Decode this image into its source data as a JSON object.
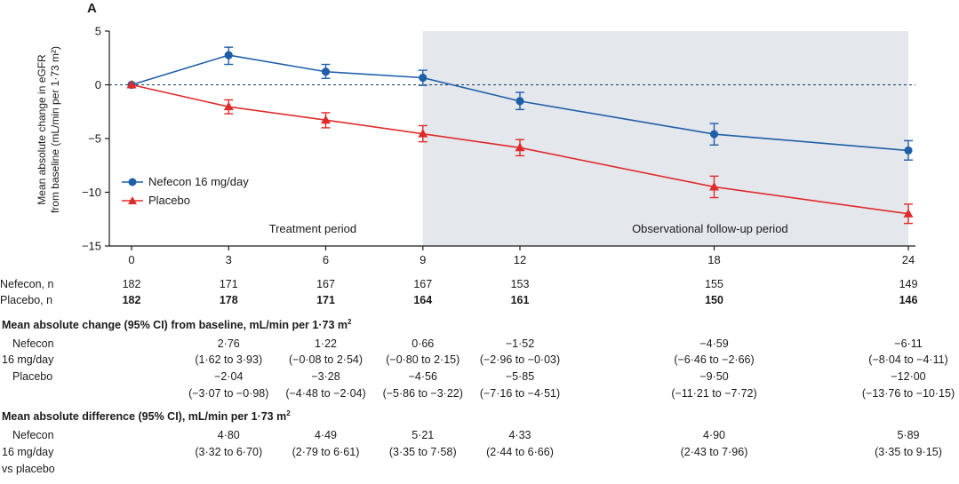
{
  "panel_label": "A",
  "chart_data": {
    "type": "line",
    "title": "",
    "xlabel": "",
    "ylabel_line1": "Mean absolute change in eGFR",
    "ylabel_line2": "from baseline (mL/min per 1·73 m²)",
    "x": [
      0,
      3,
      6,
      9,
      12,
      18,
      24
    ],
    "x_tick_labels": [
      "0",
      "3",
      "6",
      "9",
      "12",
      "18",
      "24"
    ],
    "y_ticks": [
      5,
      0,
      -5,
      -10,
      -15
    ],
    "y_tick_labels": [
      "5",
      "0",
      "−5",
      "−10",
      "−15"
    ],
    "ylim": [
      -15,
      5
    ],
    "xlim": [
      0,
      24
    ],
    "grid": false,
    "reference_line_y": 0,
    "shaded_region_x": [
      9,
      24
    ],
    "legend_position": "left",
    "series": [
      {
        "name": "Nefecon 16 mg/day",
        "color": "#1f5fa8",
        "marker": "circle",
        "values": [
          0,
          2.76,
          1.22,
          0.66,
          -1.52,
          -4.59,
          -6.11
        ],
        "ci_low": [
          0,
          1.9,
          0.6,
          -0.05,
          -2.3,
          -5.6,
          -7.0
        ],
        "ci_high": [
          0,
          3.5,
          1.9,
          1.35,
          -0.7,
          -3.6,
          -5.2
        ]
      },
      {
        "name": "Placebo",
        "color": "#e02b2b",
        "marker": "triangle",
        "values": [
          0,
          -2.04,
          -3.28,
          -4.56,
          -5.85,
          -9.5,
          -12.0
        ],
        "ci_low": [
          0,
          -2.7,
          -4.0,
          -5.3,
          -6.6,
          -10.5,
          -12.9
        ],
        "ci_high": [
          0,
          -1.4,
          -2.6,
          -3.8,
          -5.1,
          -8.5,
          -11.1
        ]
      }
    ],
    "annotations": [
      "Treatment period",
      "Observational follow-up period"
    ]
  },
  "table": {
    "n_rows": [
      {
        "label": "Nefecon, n",
        "values": [
          "182",
          "171",
          "167",
          "167",
          "153",
          "155",
          "149"
        ]
      },
      {
        "label": "Placebo, n",
        "values": [
          "182",
          "178",
          "171",
          "164",
          "161",
          "150",
          "146"
        ]
      }
    ],
    "change_title": "Mean absolute change (95% CI) from baseline, mL/min per 1·73 m",
    "change_title_sup": "2",
    "change_nefecon_label1": "Nefecon",
    "change_nefecon_label2": "16 mg/day",
    "change_nefecon_values": [
      "2·76",
      "1·22",
      "0·66",
      "−1·52",
      "−4·59",
      "−6·11"
    ],
    "change_nefecon_ci": [
      "(1·62 to 3·93)",
      "(−0·08 to 2·54)",
      "(−0·80 to 2·15)",
      "(−2·96 to −0·03)",
      "(−6·46 to −2·66)",
      "(−8·04 to −4·11)"
    ],
    "change_placebo_label": "Placebo",
    "change_placebo_values": [
      "−2·04",
      "−3·28",
      "−4·56",
      "−5·85",
      "−9·50",
      "−12·00"
    ],
    "change_placebo_ci": [
      "(−3·07 to −0·98)",
      "(−4·48 to −2·04)",
      "(−5·86 to −3·22)",
      "(−7·16 to −4·51)",
      "(−11·21 to −7·72)",
      "(−13·76 to −10·15)"
    ],
    "diff_title": "Mean absolute difference (95% CI), mL/min per 1·73 m",
    "diff_title_sup": "2",
    "diff_label1": "Nefecon",
    "diff_label2": "16 mg/day",
    "diff_label3": "vs placebo",
    "diff_values": [
      "4·80",
      "4·49",
      "5·21",
      "4·33",
      "4·90",
      "5·89"
    ],
    "diff_ci": [
      "(3·32 to 6·70)",
      "(2·79 to 6·61)",
      "(3·35 to 7·58)",
      "(2·44 to 6·66)",
      "(2·43 to 7·96)",
      "(3·35 to 9·15)"
    ]
  }
}
